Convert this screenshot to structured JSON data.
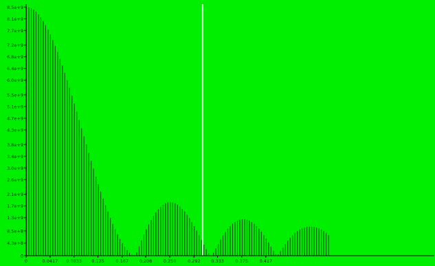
{
  "colors": {
    "background": "#00ee00",
    "bars": "#004400",
    "axis": "#000000",
    "tick_text": "#003300",
    "cursor_line": "#d0ffd0"
  },
  "chart_data": {
    "type": "bar",
    "title": "",
    "xlabel": "",
    "ylabel": "",
    "grid": false,
    "legend": "none",
    "xlim": [
      0,
      0.71
    ],
    "ylim": [
      0,
      8600000000.0
    ],
    "cursor_x": 0.307,
    "x_tick_values": [
      0,
      0.0417,
      0.0833,
      0.125,
      0.167,
      0.208,
      0.25,
      0.292,
      0.333,
      0.375,
      0.417
    ],
    "x_tick_labels": [
      "0",
      "0.0417",
      "0.0833",
      "0.125",
      "0.167",
      "0.208",
      "0.250",
      "0.292",
      "0.333",
      "0.375",
      "0.417"
    ],
    "y_tick_values": [
      0,
      430000000,
      850000000,
      1300000000,
      1700000000,
      2100000000,
      2600000000,
      3000000000,
      3400000000,
      3800000000,
      4300000000,
      4700000000,
      5100000000,
      5500000000,
      6000000000,
      6400000000,
      6800000000,
      7200000000,
      7700000000,
      8100000000,
      8500000000
    ],
    "y_tick_labels": [
      "0",
      "4.3e+8",
      "8.5e+8",
      "1.3e+9",
      "1.7e+9",
      "2.1e+9",
      "2.6e+9",
      "3.0e+9",
      "3.4e+9",
      "3.8e+9",
      "4.3e+9",
      "4.7e+9",
      "5.1e+9",
      "5.5e+9",
      "6.0e+9",
      "6.4e+9",
      "6.8e+9",
      "7.2e+9",
      "7.7e+9",
      "8.1e+9",
      "8.5e+9"
    ],
    "bar_spacing_x": 0.00417,
    "values": [
      8500000000.0,
      8490000000.0,
      8460000000.0,
      8410000000.0,
      8340000000.0,
      8250000000.0,
      8150000000.0,
      8020000000.0,
      7880000000.0,
      7730000000.0,
      7560000000.0,
      7370000000.0,
      7170000000.0,
      6960000000.0,
      6730000000.0,
      6500000000.0,
      6250000000.0,
      6000000000.0,
      5740000000.0,
      5470000000.0,
      5200000000.0,
      4920000000.0,
      4640000000.0,
      4360000000.0,
      4080000000.0,
      3800000000.0,
      3520000000.0,
      3240000000.0,
      2970000000.0,
      2700000000.0,
      2440000000.0,
      2190000000.0,
      1950000000.0,
      1720000000.0,
      1500000000.0,
      1290000000.0,
      1090000000.0,
      900000000.0,
      730000000.0,
      570000000.0,
      430000000.0,
      300000000.0,
      190000000.0,
      100000000.0,
      30000000.0,
      20000000.0,
      120000000.0,
      320000000.0,
      520000000.0,
      720000000.0,
      900000000.0,
      1070000000.0,
      1220000000.0,
      1360000000.0,
      1480000000.0,
      1580000000.0,
      1670000000.0,
      1740000000.0,
      1790000000.0,
      1820000000.0,
      1830000000.0,
      1820000000.0,
      1790000000.0,
      1740000000.0,
      1680000000.0,
      1600000000.0,
      1510000000.0,
      1400000000.0,
      1280000000.0,
      1150000000.0,
      1010000000.0,
      860000000.0,
      700000000.0,
      540000000.0,
      380000000.0,
      220000000.0,
      80000000.0,
      0.0,
      100000000.0,
      250000000.0,
      400000000.0,
      550000000.0,
      690000000.0,
      810000000.0,
      920000000.0,
      1010000000.0,
      1090000000.0,
      1150000000.0,
      1200000000.0,
      1230000000.0,
      1250000000.0,
      1250000000.0,
      1230000000.0,
      1200000000.0,
      1150000000.0,
      1090000000.0,
      1010000000.0,
      920000000.0,
      820000000.0,
      700000000.0,
      580000000.0,
      450000000.0,
      310000000.0,
      170000000.0,
      50000000.0,
      40000000.0,
      160000000.0,
      280000000.0,
      400000000.0,
      510000000.0,
      610000000.0,
      700000000.0,
      770000000.0,
      840000000.0,
      890000000.0,
      930000000.0,
      960000000.0,
      980000000.0,
      990000000.0,
      990000000.0,
      980000000.0,
      960000000.0,
      930000000.0,
      890000000.0,
      840000000.0,
      780000000.0,
      700000000.0
    ]
  }
}
